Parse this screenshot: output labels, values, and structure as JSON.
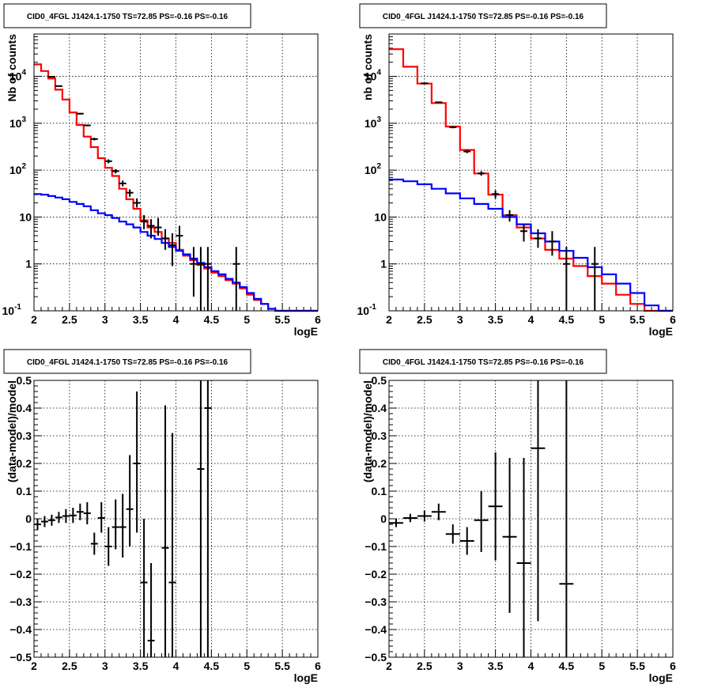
{
  "chart_data": [
    {
      "type": "line",
      "title": "CID0_4FGL J1424.1-1750 TS=72.85 PS=-0.16 PS=-0.16",
      "xlabel": "logE",
      "ylabel": "Nb of counts",
      "xlim": [
        2,
        6
      ],
      "ylim": [
        0.1,
        80000
      ],
      "ylog": true,
      "grid": true,
      "xticks": [
        "2",
        "2.5",
        "3",
        "3.5",
        "4",
        "4.5",
        "5",
        "5.5",
        "6"
      ],
      "yticks": [
        {
          "v": 0.1,
          "label": "10",
          "sup": "-1"
        },
        {
          "v": 1,
          "label": "1",
          "sup": ""
        },
        {
          "v": 10,
          "label": "10",
          "sup": ""
        },
        {
          "v": 100,
          "label": "10",
          "sup": "2"
        },
        {
          "v": 1000,
          "label": "10",
          "sup": "3"
        },
        {
          "v": 10000,
          "label": "10",
          "sup": "4"
        }
      ],
      "series": [
        {
          "color": "#ff0000",
          "kind": "step",
          "edges": [
            2,
            2.1,
            2.2,
            2.3,
            2.4,
            2.5,
            2.6,
            2.7,
            2.8,
            2.9,
            3.0,
            3.1,
            3.2,
            3.3,
            3.4,
            3.5,
            3.6,
            3.7,
            3.8,
            3.9,
            4.0,
            4.1,
            4.2,
            4.3,
            4.4,
            4.5,
            4.6,
            4.7,
            4.8,
            4.9,
            5.0,
            5.1,
            5.2,
            5.3,
            5.4,
            5.5,
            5.6,
            5.7,
            5.8,
            5.9,
            6.0
          ],
          "values": [
            18000,
            13000,
            9000,
            5200,
            3200,
            1700,
            920,
            520,
            310,
            180,
            112,
            75,
            40,
            24,
            15,
            8.5,
            6.0,
            4.8,
            3.5,
            2.8,
            2.0,
            1.5,
            1.2,
            0.95,
            0.8,
            0.65,
            0.55,
            0.45,
            0.38,
            0.3,
            0.22,
            0.17,
            0.14,
            0.11,
            0.1,
            0.1,
            0.1,
            0.1,
            0.1,
            0.1
          ]
        },
        {
          "color": "#0000ff",
          "kind": "step",
          "edges": [
            2,
            2.1,
            2.2,
            2.3,
            2.4,
            2.5,
            2.6,
            2.7,
            2.8,
            2.9,
            3.0,
            3.1,
            3.2,
            3.3,
            3.4,
            3.5,
            3.6,
            3.7,
            3.8,
            3.9,
            4.0,
            4.1,
            4.2,
            4.3,
            4.4,
            4.5,
            4.6,
            4.7,
            4.8,
            4.9,
            5.0,
            5.1,
            5.2,
            5.3,
            5.4,
            5.5,
            5.6,
            5.7,
            5.8,
            5.9,
            6.0
          ],
          "values": [
            31,
            30,
            28,
            26,
            24,
            21,
            19,
            17,
            14,
            12,
            11,
            9.5,
            8.0,
            7.0,
            6.0,
            4.8,
            4.0,
            3.4,
            2.8,
            2.3,
            1.9,
            1.6,
            1.3,
            1.05,
            0.85,
            0.7,
            0.6,
            0.48,
            0.4,
            0.32,
            0.24,
            0.18,
            0.14,
            0.11,
            0.1,
            0.1,
            0.1,
            0.1,
            0.1,
            0.1
          ]
        },
        {
          "color": "#000000",
          "kind": "errbar",
          "points": [
            {
              "x": 2.25,
              "y": 9800,
              "lo": 9600,
              "hi": 10000
            },
            {
              "x": 2.35,
              "y": 6200,
              "lo": 6050,
              "hi": 6350
            },
            {
              "x": 2.65,
              "y": 1600,
              "lo": 1540,
              "hi": 1660
            },
            {
              "x": 2.75,
              "y": 900,
              "lo": 860,
              "hi": 940
            },
            {
              "x": 2.85,
              "y": 460,
              "lo": 430,
              "hi": 490
            },
            {
              "x": 3.05,
              "y": 155,
              "lo": 140,
              "hi": 170
            },
            {
              "x": 3.15,
              "y": 95,
              "lo": 85,
              "hi": 105
            },
            {
              "x": 3.25,
              "y": 52,
              "lo": 45,
              "hi": 60
            },
            {
              "x": 3.35,
              "y": 33,
              "lo": 27,
              "hi": 39
            },
            {
              "x": 3.45,
              "y": 20,
              "lo": 16,
              "hi": 25
            },
            {
              "x": 3.55,
              "y": 8,
              "lo": 5.5,
              "hi": 11
            },
            {
              "x": 3.65,
              "y": 6.5,
              "lo": 3.5,
              "hi": 9
            },
            {
              "x": 3.75,
              "y": 6,
              "lo": 4,
              "hi": 9.5
            },
            {
              "x": 3.85,
              "y": 3.5,
              "lo": 2,
              "hi": 5.5
            },
            {
              "x": 3.95,
              "y": 2.5,
              "lo": 0.9,
              "hi": 4.5
            },
            {
              "x": 4.05,
              "y": 4,
              "lo": 2,
              "hi": 6.5
            },
            {
              "x": 4.25,
              "y": 1,
              "lo": 0.2,
              "hi": 2.3
            },
            {
              "x": 4.35,
              "y": 1,
              "lo": 0.1,
              "hi": 2.3
            },
            {
              "x": 4.45,
              "y": 1,
              "lo": 0.1,
              "hi": 2.3
            },
            {
              "x": 4.85,
              "y": 1,
              "lo": 0.1,
              "hi": 2.3
            }
          ]
        }
      ]
    },
    {
      "type": "line",
      "title": "CID0_4FGL J1424.1-1750 TS=72.85 PS=-0.16 PS=-0.16",
      "xlabel": "logE",
      "ylabel": "nb of counts",
      "xlim": [
        2,
        6
      ],
      "ylim": [
        0.1,
        80000
      ],
      "ylog": true,
      "grid": true,
      "xticks": [
        "2",
        "2.5",
        "3",
        "3.5",
        "4",
        "4.5",
        "5",
        "5.5",
        "6"
      ],
      "yticks": [
        {
          "v": 0.1,
          "label": "10",
          "sup": "-1"
        },
        {
          "v": 1,
          "label": "1",
          "sup": ""
        },
        {
          "v": 10,
          "label": "10",
          "sup": ""
        },
        {
          "v": 100,
          "label": "10",
          "sup": "2"
        },
        {
          "v": 1000,
          "label": "10",
          "sup": "3"
        },
        {
          "v": 10000,
          "label": "10",
          "sup": "4"
        }
      ],
      "series": [
        {
          "color": "#ff0000",
          "kind": "step",
          "edges": [
            2,
            2.2,
            2.4,
            2.6,
            2.8,
            3.0,
            3.2,
            3.4,
            3.6,
            3.8,
            4.0,
            4.2,
            4.4,
            4.6,
            4.8,
            5.0,
            5.2,
            5.4,
            5.6,
            5.8,
            6.0
          ],
          "values": [
            38000,
            16000,
            7000,
            2700,
            850,
            270,
            85,
            30,
            11,
            6,
            3.5,
            2,
            1.3,
            0.9,
            0.55,
            0.38,
            0.22,
            0.14,
            0.1,
            0.1
          ]
        },
        {
          "color": "#0000ff",
          "kind": "step",
          "edges": [
            2,
            2.2,
            2.4,
            2.6,
            2.8,
            3.0,
            3.2,
            3.4,
            3.6,
            3.8,
            4.0,
            4.2,
            4.4,
            4.6,
            4.8,
            5.0,
            5.2,
            5.4,
            5.6,
            5.8,
            6.0
          ],
          "values": [
            63,
            58,
            50,
            40,
            32,
            25,
            19,
            15,
            10,
            7,
            4.5,
            3.0,
            1.9,
            1.35,
            0.85,
            0.6,
            0.38,
            0.24,
            0.13,
            0.1
          ]
        },
        {
          "color": "#000000",
          "kind": "errbar",
          "points": [
            {
              "x": 2.5,
              "y": 7100,
              "lo": 7000,
              "hi": 7200
            },
            {
              "x": 2.7,
              "y": 2800,
              "lo": 2700,
              "hi": 2900
            },
            {
              "x": 2.9,
              "y": 820,
              "lo": 780,
              "hi": 860
            },
            {
              "x": 3.1,
              "y": 250,
              "lo": 230,
              "hi": 270
            },
            {
              "x": 3.3,
              "y": 85,
              "lo": 76,
              "hi": 95
            },
            {
              "x": 3.5,
              "y": 31,
              "lo": 25,
              "hi": 37
            },
            {
              "x": 3.7,
              "y": 11,
              "lo": 8,
              "hi": 14
            },
            {
              "x": 3.9,
              "y": 5,
              "lo": 3,
              "hi": 7
            },
            {
              "x": 4.1,
              "y": 3.5,
              "lo": 2.2,
              "hi": 5.5
            },
            {
              "x": 4.3,
              "y": 3,
              "lo": 1.5,
              "hi": 5
            },
            {
              "x": 4.5,
              "y": 1,
              "lo": 0.1,
              "hi": 2.3
            },
            {
              "x": 4.9,
              "y": 1,
              "lo": 0.1,
              "hi": 2.3
            }
          ]
        }
      ]
    },
    {
      "type": "scatter",
      "title": "CID0_4FGL J1424.1-1750 TS=72.85 PS=-0.16 PS=-0.16",
      "xlabel": "logE",
      "ylabel": "(data-model)/model",
      "xlim": [
        2,
        6
      ],
      "ylim": [
        -0.5,
        0.5
      ],
      "ylog": false,
      "grid": true,
      "xticks": [
        "2",
        "2.5",
        "3",
        "3.5",
        "4",
        "4.5",
        "5",
        "5.5",
        "6"
      ],
      "yticks": [
        {
          "v": -0.5,
          "label": "−0.5"
        },
        {
          "v": -0.4,
          "label": "−0.4"
        },
        {
          "v": -0.3,
          "label": "−0.3"
        },
        {
          "v": -0.2,
          "label": "−0.2"
        },
        {
          "v": -0.1,
          "label": "−0.1"
        },
        {
          "v": 0,
          "label": "0"
        },
        {
          "v": 0.1,
          "label": "0.1"
        },
        {
          "v": 0.2,
          "label": "0.2"
        },
        {
          "v": 0.3,
          "label": "0.3"
        },
        {
          "v": 0.4,
          "label": "0.4"
        },
        {
          "v": 0.5,
          "label": "0.5"
        }
      ],
      "series": [
        {
          "color": "#000000",
          "kind": "errbar",
          "halfwidth": 0.05,
          "points": [
            {
              "x": 2.05,
              "y": -0.02,
              "lo": -0.04,
              "hi": 0.0
            },
            {
              "x": 2.15,
              "y": -0.01,
              "lo": -0.03,
              "hi": 0.01
            },
            {
              "x": 2.25,
              "y": -0.005,
              "lo": -0.025,
              "hi": 0.015
            },
            {
              "x": 2.35,
              "y": 0.005,
              "lo": -0.015,
              "hi": 0.025
            },
            {
              "x": 2.45,
              "y": 0.01,
              "lo": -0.015,
              "hi": 0.035
            },
            {
              "x": 2.55,
              "y": 0.012,
              "lo": -0.015,
              "hi": 0.04
            },
            {
              "x": 2.65,
              "y": 0.025,
              "lo": -0.005,
              "hi": 0.055
            },
            {
              "x": 2.75,
              "y": 0.02,
              "lo": -0.02,
              "hi": 0.06
            },
            {
              "x": 2.85,
              "y": -0.09,
              "lo": -0.13,
              "hi": -0.05
            },
            {
              "x": 2.95,
              "y": 0.003,
              "lo": -0.05,
              "hi": 0.06
            },
            {
              "x": 3.05,
              "y": -0.1,
              "lo": -0.17,
              "hi": -0.03
            },
            {
              "x": 3.15,
              "y": -0.03,
              "lo": -0.11,
              "hi": 0.07
            },
            {
              "x": 3.25,
              "y": -0.03,
              "lo": -0.14,
              "hi": 0.09
            },
            {
              "x": 3.35,
              "y": 0.035,
              "lo": -0.1,
              "hi": 0.23
            },
            {
              "x": 3.45,
              "y": 0.2,
              "lo": -0.05,
              "hi": 0.46
            },
            {
              "x": 3.55,
              "y": -0.23,
              "lo": -0.5,
              "hi": 0.0
            },
            {
              "x": 3.65,
              "y": -0.44,
              "lo": -0.5,
              "hi": -0.16
            },
            {
              "x": 3.85,
              "y": -0.105,
              "lo": -0.5,
              "hi": 0.41
            },
            {
              "x": 3.95,
              "y": -0.23,
              "lo": -0.5,
              "hi": 0.31
            },
            {
              "x": 4.35,
              "y": 0.18,
              "lo": -0.5,
              "hi": 0.5
            },
            {
              "x": 4.45,
              "y": 0.4,
              "lo": -0.5,
              "hi": 0.5
            }
          ]
        }
      ]
    },
    {
      "type": "scatter",
      "title": "CID0_4FGL J1424.1-1750 TS=72.85 PS=-0.16 PS=-0.16",
      "xlabel": "logE",
      "ylabel": "(data-model)/model",
      "xlim": [
        2,
        6
      ],
      "ylim": [
        -0.5,
        0.5
      ],
      "ylog": false,
      "grid": true,
      "xticks": [
        "2",
        "2.5",
        "3",
        "3.5",
        "4",
        "4.5",
        "5",
        "5.5",
        "6"
      ],
      "yticks": [
        {
          "v": -0.5,
          "label": "−0.5"
        },
        {
          "v": -0.4,
          "label": "−0.4"
        },
        {
          "v": -0.3,
          "label": "−0.3"
        },
        {
          "v": -0.2,
          "label": "−0.2"
        },
        {
          "v": -0.1,
          "label": "−0.1"
        },
        {
          "v": 0,
          "label": "0"
        },
        {
          "v": 0.1,
          "label": "0.1"
        },
        {
          "v": 0.2,
          "label": "0.2"
        },
        {
          "v": 0.3,
          "label": "0.3"
        },
        {
          "v": 0.4,
          "label": "0.4"
        },
        {
          "v": 0.5,
          "label": "0.5"
        }
      ],
      "series": [
        {
          "color": "#000000",
          "kind": "errbar",
          "halfwidth": 0.1,
          "points": [
            {
              "x": 2.1,
              "y": -0.015,
              "lo": -0.03,
              "hi": 0.0
            },
            {
              "x": 2.3,
              "y": 0.003,
              "lo": -0.012,
              "hi": 0.018
            },
            {
              "x": 2.5,
              "y": 0.01,
              "lo": -0.01,
              "hi": 0.03
            },
            {
              "x": 2.7,
              "y": 0.025,
              "lo": -0.005,
              "hi": 0.055
            },
            {
              "x": 2.9,
              "y": -0.055,
              "lo": -0.09,
              "hi": -0.02
            },
            {
              "x": 3.1,
              "y": -0.08,
              "lo": -0.13,
              "hi": -0.03
            },
            {
              "x": 3.3,
              "y": -0.005,
              "lo": -0.12,
              "hi": 0.1
            },
            {
              "x": 3.5,
              "y": 0.045,
              "lo": -0.15,
              "hi": 0.24
            },
            {
              "x": 3.7,
              "y": -0.065,
              "lo": -0.34,
              "hi": 0.22
            },
            {
              "x": 3.9,
              "y": -0.16,
              "lo": -0.5,
              "hi": 0.22
            },
            {
              "x": 4.1,
              "y": 0.255,
              "lo": -0.37,
              "hi": 0.5
            },
            {
              "x": 4.5,
              "y": -0.235,
              "lo": -0.5,
              "hi": 0.5
            }
          ]
        }
      ]
    }
  ]
}
